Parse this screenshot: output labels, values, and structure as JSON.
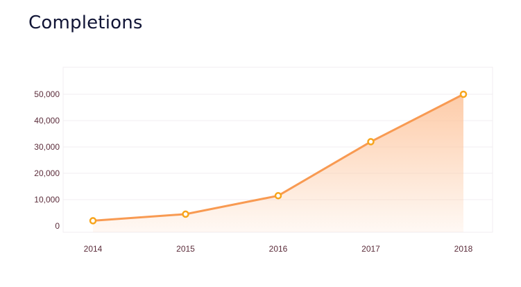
{
  "chart_data": {
    "type": "area",
    "title": "Completions",
    "xlabel": "",
    "ylabel": "",
    "categories": [
      "2014",
      "2015",
      "2016",
      "2017",
      "2018"
    ],
    "series": [
      {
        "values": [
          2000,
          4500,
          11500,
          32000,
          50000
        ]
      }
    ],
    "ylim": [
      0,
      50000
    ],
    "yticks": [
      0,
      10000,
      20000,
      30000,
      40000,
      50000
    ],
    "ytick_labels": [
      "0",
      "10,000",
      "20,000",
      "30,000",
      "40,000",
      "50,000"
    ],
    "grid": true,
    "legend": "none",
    "colors": {
      "line": "#f89a52",
      "marker": "#f7a51c",
      "fill_top": "#fdc9a4",
      "grid": "#f1eef0",
      "tick_text": "#5b2c3a"
    }
  }
}
